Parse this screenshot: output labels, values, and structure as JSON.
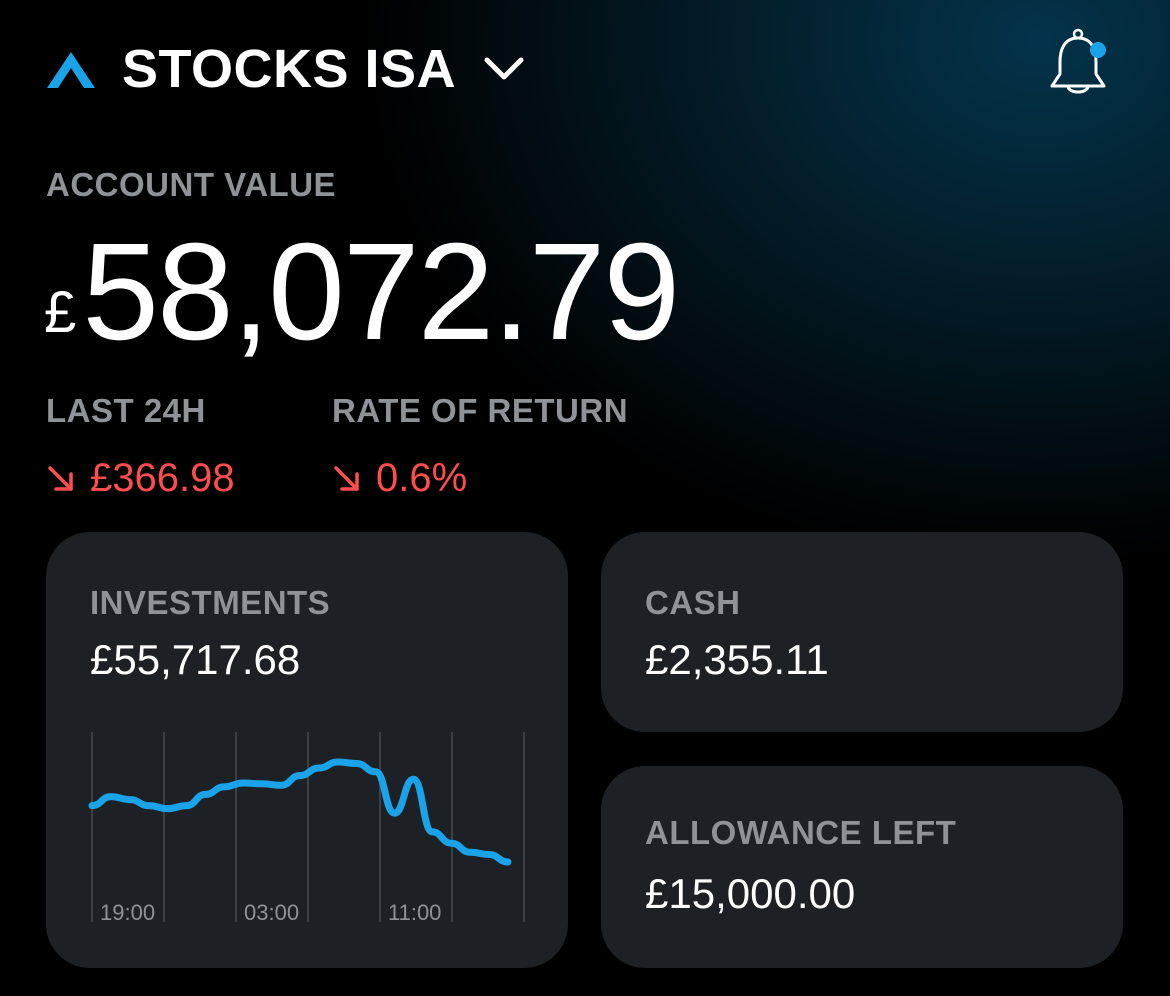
{
  "header": {
    "account_name": "STOCKS ISA",
    "logo_icon": "caret-up-logo-icon",
    "dropdown_icon": "chevron-down-icon",
    "notification_icon": "bell-icon",
    "accent_color": "#1aa3e8"
  },
  "account_value": {
    "label": "ACCOUNT VALUE",
    "currency": "£",
    "amount": "58,072.79"
  },
  "stats": {
    "last_24h": {
      "label": "LAST 24H",
      "value": "£366.98",
      "direction": "down"
    },
    "rate_of_return": {
      "label": "RATE OF RETURN",
      "value": "0.6%",
      "direction": "down"
    },
    "negative_color": "#ff4d4d"
  },
  "cards": {
    "investments": {
      "label": "INVESTMENTS",
      "value": "£55,717.68"
    },
    "cash": {
      "label": "CASH",
      "value": "£2,355.11"
    },
    "allowance": {
      "label": "ALLOWANCE LEFT",
      "value": "£15,000.00"
    }
  },
  "chart_data": {
    "type": "line",
    "line_color": "#1aa3e8",
    "x_tick_labels": [
      "19:00",
      "03:00",
      "11:00"
    ],
    "values": [
      0.2,
      0.32,
      0.28,
      0.2,
      0.16,
      0.2,
      0.35,
      0.45,
      0.5,
      0.49,
      0.47,
      0.6,
      0.7,
      0.78,
      0.76,
      0.65,
      0.1,
      0.55,
      -0.15,
      -0.3,
      -0.42,
      -0.45,
      -0.55
    ]
  }
}
